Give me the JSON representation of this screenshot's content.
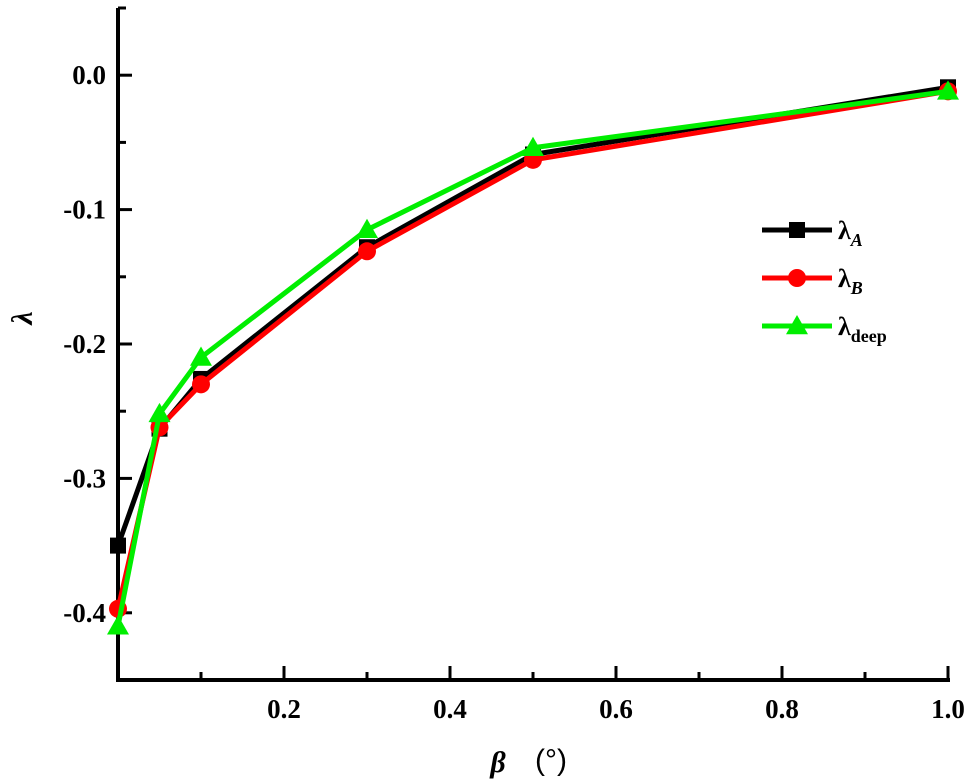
{
  "chart_data": {
    "type": "line",
    "xlabel": "β",
    "xunit": "(°)",
    "ylabel": "λ",
    "xlim": [
      0.0,
      1.0
    ],
    "ylim": [
      -0.45,
      0.05
    ],
    "x_ticks": [
      0.2,
      0.4,
      0.6,
      0.8,
      1.0
    ],
    "x_tick_labels": [
      "0.2",
      "0.4",
      "0.6",
      "0.8",
      "1.0"
    ],
    "y_ticks": [
      0.0,
      -0.1,
      -0.2,
      -0.3,
      -0.4
    ],
    "y_tick_labels": [
      "0.0",
      "-0.1",
      "-0.2",
      "-0.3",
      "-0.4"
    ],
    "grid": false,
    "legend_position": "right",
    "series": [
      {
        "name": "λ",
        "subscript": "A",
        "color": "#000000",
        "marker": "square",
        "x": [
          0.0,
          0.05,
          0.1,
          0.3,
          0.5,
          1.0
        ],
        "y": [
          -0.35,
          -0.263,
          -0.226,
          -0.128,
          -0.059,
          -0.009
        ]
      },
      {
        "name": "λ",
        "subscript": "B",
        "color": "#ff0000",
        "marker": "circle",
        "x": [
          0.0,
          0.05,
          0.1,
          0.3,
          0.5,
          1.0
        ],
        "y": [
          -0.397,
          -0.262,
          -0.23,
          -0.131,
          -0.063,
          -0.012
        ]
      },
      {
        "name": "λ",
        "subscript": "deep",
        "color": "#00ee00",
        "marker": "triangle",
        "x": [
          0.0,
          0.05,
          0.1,
          0.3,
          0.5,
          1.0
        ],
        "y": [
          -0.41,
          -0.252,
          -0.21,
          -0.115,
          -0.054,
          -0.012
        ]
      }
    ]
  }
}
